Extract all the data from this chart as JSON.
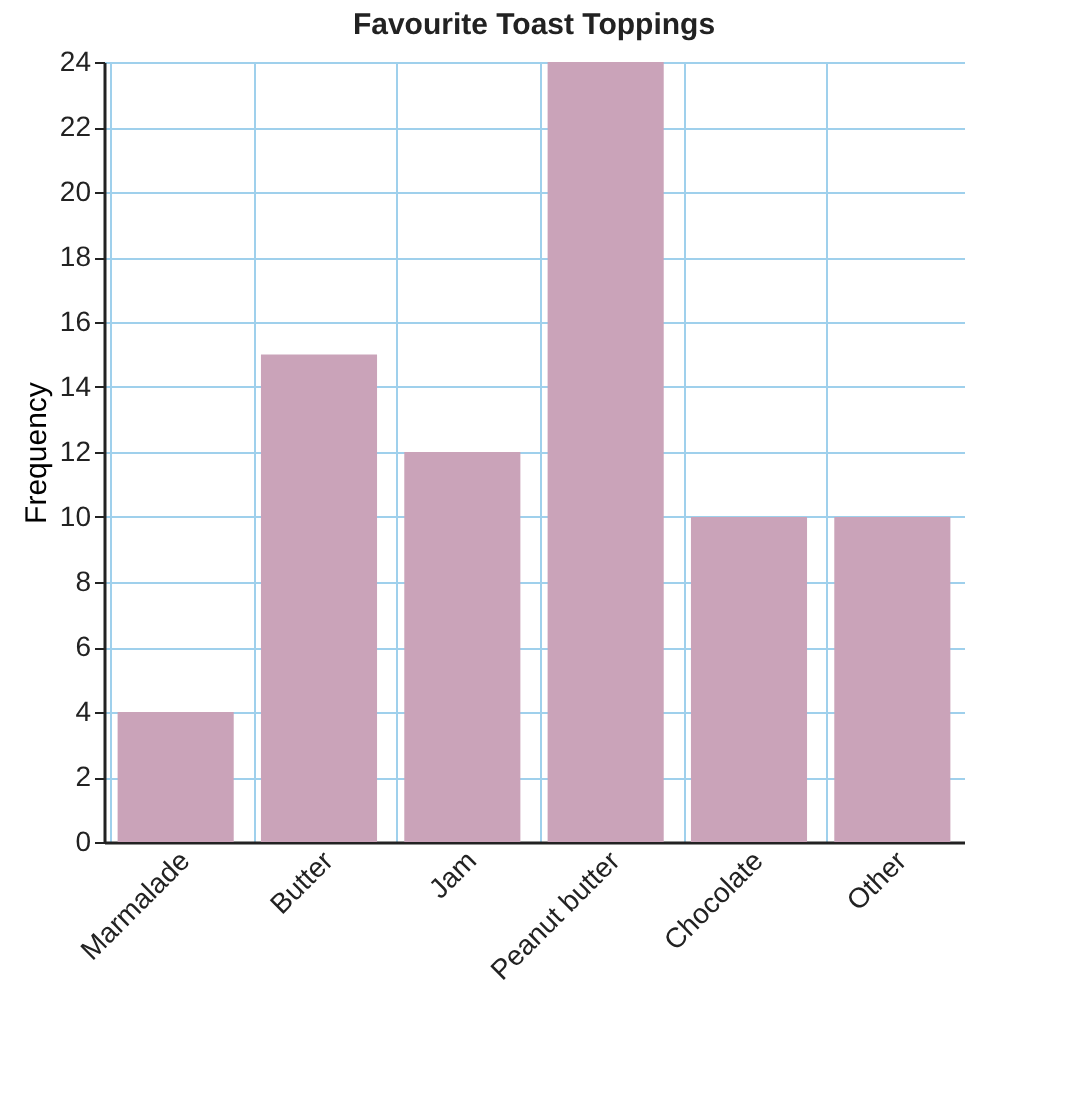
{
  "chart_data": {
    "type": "bar",
    "title": "Favourite Toast Toppings",
    "ylabel": "Frequency",
    "categories": [
      "Marmalade",
      "Butter",
      "Jam",
      "Peanut butter",
      "Chocolate",
      "Other"
    ],
    "values": [
      4,
      15,
      12,
      24,
      10,
      10
    ],
    "color": "#caa3b9",
    "ylim": [
      0,
      24
    ],
    "yticks": [
      0,
      2,
      4,
      6,
      8,
      10,
      12,
      14,
      16,
      18,
      20,
      22,
      24
    ],
    "grid": true
  }
}
